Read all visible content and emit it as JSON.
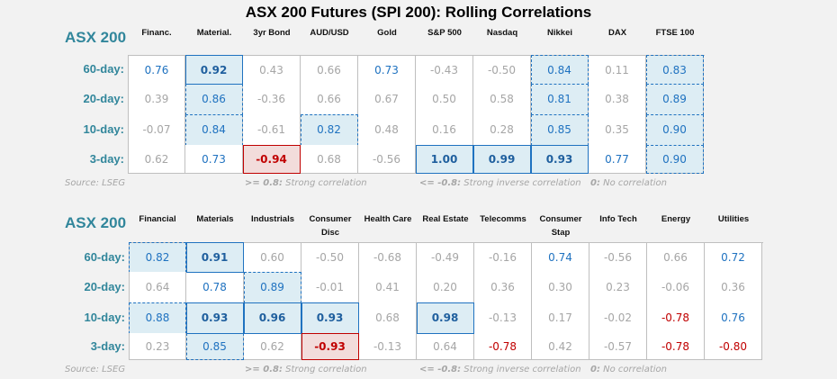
{
  "title": "ASX 200 Futures (SPI 200): Rolling Correlations",
  "colors": {
    "label_teal": "#31869b",
    "positive_blue": "#1f72c0",
    "highlight_blue_bg": "#ddedf4",
    "negative_red": "#c00000",
    "negative_bg": "#f2dcdb",
    "neutral_gray": "#a6a6a6",
    "background": "#f2f2f2"
  },
  "tables": [
    {
      "label": "ASX 200",
      "columns": [
        "Financ.",
        "Material.",
        "3yr Bond",
        "AUD/USD",
        "Gold",
        "S&P 500",
        "Nasdaq",
        "Nikkei",
        "DAX",
        "FTSE 100"
      ],
      "rows": [
        {
          "label": "60-day:",
          "values": [
            "0.76",
            "0.92",
            "0.43",
            "0.66",
            "0.73",
            "-0.43",
            "-0.50",
            "0.84",
            "0.11",
            "0.83"
          ],
          "styles": [
            "mid",
            "strong",
            "",
            "",
            "mid",
            "",
            "",
            "high",
            "",
            "high"
          ]
        },
        {
          "label": "20-day:",
          "values": [
            "0.39",
            "0.86",
            "-0.36",
            "0.66",
            "0.67",
            "0.50",
            "0.58",
            "0.81",
            "0.38",
            "0.89"
          ],
          "styles": [
            "",
            "high",
            "",
            "",
            "",
            "",
            "",
            "high",
            "",
            "high"
          ]
        },
        {
          "label": "10-day:",
          "values": [
            "-0.07",
            "0.84",
            "-0.61",
            "0.82",
            "0.48",
            "0.16",
            "0.28",
            "0.85",
            "0.35",
            "0.90"
          ],
          "styles": [
            "",
            "high",
            "",
            "high",
            "",
            "",
            "",
            "high",
            "",
            "high"
          ]
        },
        {
          "label": "3-day:",
          "values": [
            "0.62",
            "0.73",
            "-0.94",
            "0.68",
            "-0.56",
            "1.00",
            "0.99",
            "0.93",
            "0.77",
            "0.90"
          ],
          "styles": [
            "",
            "mid",
            "neg-strong",
            "",
            "",
            "strong",
            "strong",
            "strong",
            "mid",
            "high"
          ]
        }
      ],
      "source": "Source: LSEG",
      "legend": {
        "strong_key": ">= 0.8:",
        "strong_text": "Strong correlation",
        "inverse_key": "<= -0.8:",
        "inverse_text": "Strong inverse correlation",
        "zero_key": "0:",
        "zero_text": "No correlation"
      }
    },
    {
      "label": "ASX 200",
      "columns": [
        "Financial",
        "Materials",
        "Industrials",
        "Consumer Disc",
        "Health Care",
        "Real Estate",
        "Telecomms",
        "Consumer Stap",
        "Info Tech",
        "Energy",
        "Utilities"
      ],
      "columns_line1": [
        "Financial",
        "Materials",
        "Industrials",
        "Consumer",
        "Health Care",
        "Real Estate",
        "Telecomms",
        "Consumer",
        "Info Tech",
        "Energy",
        "Utilities"
      ],
      "columns_line2": [
        "",
        "",
        "",
        "Disc",
        "",
        "",
        "",
        "Stap",
        "",
        "",
        ""
      ],
      "rows": [
        {
          "label": "60-day:",
          "values": [
            "0.82",
            "0.91",
            "0.60",
            "-0.50",
            "-0.68",
            "-0.49",
            "-0.16",
            "0.74",
            "-0.56",
            "0.66",
            "0.72"
          ],
          "styles": [
            "high",
            "strong",
            "",
            "",
            "",
            "",
            "",
            "mid",
            "",
            "",
            "mid"
          ]
        },
        {
          "label": "20-day:",
          "values": [
            "0.64",
            "0.78",
            "0.89",
            "-0.01",
            "0.41",
            "0.20",
            "0.36",
            "0.30",
            "0.23",
            "-0.06",
            "0.36"
          ],
          "styles": [
            "",
            "mid",
            "high",
            "",
            "",
            "",
            "",
            "",
            "",
            "",
            ""
          ]
        },
        {
          "label": "10-day:",
          "values": [
            "0.88",
            "0.93",
            "0.96",
            "0.93",
            "0.68",
            "0.98",
            "-0.13",
            "0.17",
            "-0.02",
            "-0.78",
            "0.76"
          ],
          "styles": [
            "high",
            "strong",
            "strong",
            "strong",
            "",
            "strong",
            "",
            "",
            "",
            "neg-mid",
            "mid"
          ]
        },
        {
          "label": "3-day:",
          "values": [
            "0.23",
            "0.85",
            "0.62",
            "-0.93",
            "-0.13",
            "0.64",
            "-0.78",
            "0.42",
            "-0.57",
            "-0.78",
            "-0.80"
          ],
          "styles": [
            "",
            "high",
            "",
            "neg-strong",
            "",
            "",
            "neg-mid",
            "",
            "",
            "neg-mid",
            "neg-mid"
          ]
        }
      ],
      "source": "Source: LSEG",
      "legend": {
        "strong_key": ">= 0.8:",
        "strong_text": "Strong correlation",
        "inverse_key": "<= -0.8:",
        "inverse_text": "Strong inverse correlation",
        "zero_key": "0:",
        "zero_text": "No correlation"
      }
    }
  ],
  "chart_data": [
    {
      "type": "heatmap",
      "title": "ASX 200 Futures (SPI 200): Rolling Correlations",
      "subtitle": "ASX 200 vs markets",
      "x": [
        "Financ.",
        "Material.",
        "3yr Bond",
        "AUD/USD",
        "Gold",
        "S&P 500",
        "Nasdaq",
        "Nikkei",
        "DAX",
        "FTSE 100"
      ],
      "y": [
        "60-day",
        "20-day",
        "10-day",
        "3-day"
      ],
      "values": [
        [
          0.76,
          0.92,
          0.43,
          0.66,
          0.73,
          -0.43,
          -0.5,
          0.84,
          0.11,
          0.83
        ],
        [
          0.39,
          0.86,
          -0.36,
          0.66,
          0.67,
          0.5,
          0.58,
          0.81,
          0.38,
          0.89
        ],
        [
          -0.07,
          0.84,
          -0.61,
          0.82,
          0.48,
          0.16,
          0.28,
          0.85,
          0.35,
          0.9
        ],
        [
          0.62,
          0.73,
          -0.94,
          0.68,
          -0.56,
          1.0,
          0.99,
          0.93,
          0.77,
          0.9
        ]
      ],
      "legend": [
        ">= 0.8: Strong correlation",
        "<= -0.8: Strong inverse correlation",
        "0: No correlation"
      ],
      "source": "Source: LSEG"
    },
    {
      "type": "heatmap",
      "title": "ASX 200 Futures (SPI 200): Rolling Correlations",
      "subtitle": "ASX 200 vs sectors",
      "x": [
        "Financial",
        "Materials",
        "Industrials",
        "Consumer Disc",
        "Health Care",
        "Real Estate",
        "Telecomms",
        "Consumer Stap",
        "Info Tech",
        "Energy",
        "Utilities"
      ],
      "y": [
        "60-day",
        "20-day",
        "10-day",
        "3-day"
      ],
      "values": [
        [
          0.82,
          0.91,
          0.6,
          -0.5,
          -0.68,
          -0.49,
          -0.16,
          0.74,
          -0.56,
          0.66,
          0.72
        ],
        [
          0.64,
          0.78,
          0.89,
          -0.01,
          0.41,
          0.2,
          0.36,
          0.3,
          0.23,
          -0.06,
          0.36
        ],
        [
          0.88,
          0.93,
          0.96,
          0.93,
          0.68,
          0.98,
          -0.13,
          0.17,
          -0.02,
          -0.78,
          0.76
        ],
        [
          0.23,
          0.85,
          0.62,
          -0.93,
          -0.13,
          0.64,
          -0.78,
          0.42,
          -0.57,
          -0.78,
          -0.8
        ]
      ],
      "legend": [
        ">= 0.8: Strong correlation",
        "<= -0.8: Strong inverse correlation",
        "0: No correlation"
      ],
      "source": "Source: LSEG"
    }
  ]
}
